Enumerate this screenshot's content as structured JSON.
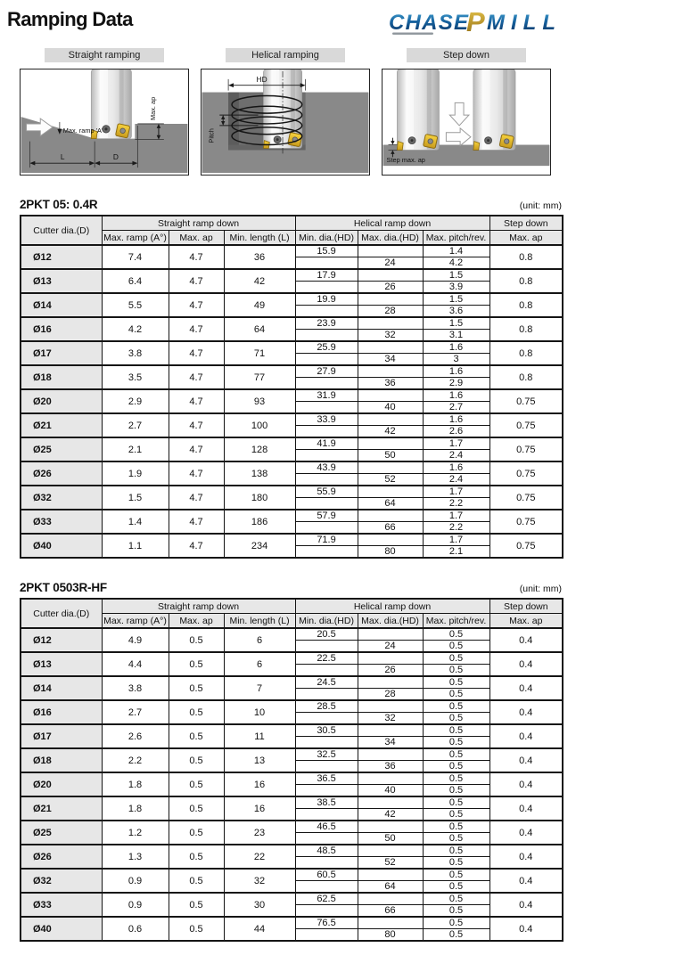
{
  "page": {
    "title": "Ramping Data"
  },
  "logo": {
    "chase": "CHASE",
    "p": "P",
    "mill": "MILL",
    "blue": "#125a9e",
    "gold": "#c79a2e"
  },
  "colors": {
    "header_gray": "#e7e7e7",
    "title_bar_gray": "#d9d9d9",
    "workpiece_gray": "#898989",
    "insert_yellow": "#f2c21d",
    "border_black": "#151515"
  },
  "diagrams": [
    {
      "title": "Straight ramping",
      "labels": {
        "ramp": "Max. ramp 'A'",
        "ap": "Max. ap",
        "l": "L",
        "d": "D"
      }
    },
    {
      "title": "Helical ramping",
      "labels": {
        "hd": "HD",
        "pitch": "Pitch"
      }
    },
    {
      "title": "Step down",
      "labels": {
        "step": "Step max. ap"
      }
    }
  ],
  "tables": [
    {
      "title": "2PKT 05: 0.4R",
      "unit": "(unit: mm)",
      "headers": {
        "cutter_dia": "Cutter dia.(D)",
        "straight": "Straight ramp down",
        "helical": "Helical ramp down",
        "step": "Step down",
        "max_ramp": "Max. ramp (A°)",
        "max_ap": "Max. ap",
        "min_length": "Min. length (L)",
        "min_dia": "Min. dia.(HD)",
        "max_dia": "Max. dia.(HD)",
        "pitch": "Max. pitch/rev.",
        "step_ap": "Max. ap"
      },
      "rows": [
        {
          "dia": "Ø12",
          "max_ramp": "7.4",
          "max_ap": "4.7",
          "min_length": "36",
          "min_dia": "15.9",
          "max_dia": "24",
          "pitch_top": "1.4",
          "pitch_bottom": "4.2",
          "step_ap": "0.8"
        },
        {
          "dia": "Ø13",
          "max_ramp": "6.4",
          "max_ap": "4.7",
          "min_length": "42",
          "min_dia": "17.9",
          "max_dia": "26",
          "pitch_top": "1.5",
          "pitch_bottom": "3.9",
          "step_ap": "0.8"
        },
        {
          "dia": "Ø14",
          "max_ramp": "5.5",
          "max_ap": "4.7",
          "min_length": "49",
          "min_dia": "19.9",
          "max_dia": "28",
          "pitch_top": "1.5",
          "pitch_bottom": "3.6",
          "step_ap": "0.8"
        },
        {
          "dia": "Ø16",
          "max_ramp": "4.2",
          "max_ap": "4.7",
          "min_length": "64",
          "min_dia": "23.9",
          "max_dia": "32",
          "pitch_top": "1.5",
          "pitch_bottom": "3.1",
          "step_ap": "0.8"
        },
        {
          "dia": "Ø17",
          "max_ramp": "3.8",
          "max_ap": "4.7",
          "min_length": "71",
          "min_dia": "25.9",
          "max_dia": "34",
          "pitch_top": "1.6",
          "pitch_bottom": "3",
          "step_ap": "0.8"
        },
        {
          "dia": "Ø18",
          "max_ramp": "3.5",
          "max_ap": "4.7",
          "min_length": "77",
          "min_dia": "27.9",
          "max_dia": "36",
          "pitch_top": "1.6",
          "pitch_bottom": "2.9",
          "step_ap": "0.8"
        },
        {
          "dia": "Ø20",
          "max_ramp": "2.9",
          "max_ap": "4.7",
          "min_length": "93",
          "min_dia": "31.9",
          "max_dia": "40",
          "pitch_top": "1.6",
          "pitch_bottom": "2.7",
          "step_ap": "0.75"
        },
        {
          "dia": "Ø21",
          "max_ramp": "2.7",
          "max_ap": "4.7",
          "min_length": "100",
          "min_dia": "33.9",
          "max_dia": "42",
          "pitch_top": "1.6",
          "pitch_bottom": "2.6",
          "step_ap": "0.75"
        },
        {
          "dia": "Ø25",
          "max_ramp": "2.1",
          "max_ap": "4.7",
          "min_length": "128",
          "min_dia": "41.9",
          "max_dia": "50",
          "pitch_top": "1.7",
          "pitch_bottom": "2.4",
          "step_ap": "0.75"
        },
        {
          "dia": "Ø26",
          "max_ramp": "1.9",
          "max_ap": "4.7",
          "min_length": "138",
          "min_dia": "43.9",
          "max_dia": "52",
          "pitch_top": "1.6",
          "pitch_bottom": "2.4",
          "step_ap": "0.75"
        },
        {
          "dia": "Ø32",
          "max_ramp": "1.5",
          "max_ap": "4.7",
          "min_length": "180",
          "min_dia": "55.9",
          "max_dia": "64",
          "pitch_top": "1.7",
          "pitch_bottom": "2.2",
          "step_ap": "0.75"
        },
        {
          "dia": "Ø33",
          "max_ramp": "1.4",
          "max_ap": "4.7",
          "min_length": "186",
          "min_dia": "57.9",
          "max_dia": "66",
          "pitch_top": "1.7",
          "pitch_bottom": "2.2",
          "step_ap": "0.75"
        },
        {
          "dia": "Ø40",
          "max_ramp": "1.1",
          "max_ap": "4.7",
          "min_length": "234",
          "min_dia": "71.9",
          "max_dia": "80",
          "pitch_top": "1.7",
          "pitch_bottom": "2.1",
          "step_ap": "0.75"
        }
      ]
    },
    {
      "title": "2PKT 0503R-HF",
      "unit": "(unit: mm)",
      "headers": {
        "cutter_dia": "Cutter dia.(D)",
        "straight": "Straight ramp down",
        "helical": "Helical ramp down",
        "step": "Step down",
        "max_ramp": "Max. ramp (A°)",
        "max_ap": "Max. ap",
        "min_length": "Min. length (L)",
        "min_dia": "Min. dia.(HD)",
        "max_dia": "Max. dia.(HD)",
        "pitch": "Max. pitch/rev.",
        "step_ap": "Max. ap"
      },
      "rows": [
        {
          "dia": "Ø12",
          "max_ramp": "4.9",
          "max_ap": "0.5",
          "min_length": "6",
          "min_dia": "20.5",
          "max_dia": "24",
          "pitch_top": "0.5",
          "pitch_bottom": "0.5",
          "step_ap": "0.4"
        },
        {
          "dia": "Ø13",
          "max_ramp": "4.4",
          "max_ap": "0.5",
          "min_length": "6",
          "min_dia": "22.5",
          "max_dia": "26",
          "pitch_top": "0.5",
          "pitch_bottom": "0.5",
          "step_ap": "0.4"
        },
        {
          "dia": "Ø14",
          "max_ramp": "3.8",
          "max_ap": "0.5",
          "min_length": "7",
          "min_dia": "24.5",
          "max_dia": "28",
          "pitch_top": "0.5",
          "pitch_bottom": "0.5",
          "step_ap": "0.4"
        },
        {
          "dia": "Ø16",
          "max_ramp": "2.7",
          "max_ap": "0.5",
          "min_length": "10",
          "min_dia": "28.5",
          "max_dia": "32",
          "pitch_top": "0.5",
          "pitch_bottom": "0.5",
          "step_ap": "0.4"
        },
        {
          "dia": "Ø17",
          "max_ramp": "2.6",
          "max_ap": "0.5",
          "min_length": "11",
          "min_dia": "30.5",
          "max_dia": "34",
          "pitch_top": "0.5",
          "pitch_bottom": "0.5",
          "step_ap": "0.4"
        },
        {
          "dia": "Ø18",
          "max_ramp": "2.2",
          "max_ap": "0.5",
          "min_length": "13",
          "min_dia": "32.5",
          "max_dia": "36",
          "pitch_top": "0.5",
          "pitch_bottom": "0.5",
          "step_ap": "0.4"
        },
        {
          "dia": "Ø20",
          "max_ramp": "1.8",
          "max_ap": "0.5",
          "min_length": "16",
          "min_dia": "36.5",
          "max_dia": "40",
          "pitch_top": "0.5",
          "pitch_bottom": "0.5",
          "step_ap": "0.4"
        },
        {
          "dia": "Ø21",
          "max_ramp": "1.8",
          "max_ap": "0.5",
          "min_length": "16",
          "min_dia": "38.5",
          "max_dia": "42",
          "pitch_top": "0.5",
          "pitch_bottom": "0.5",
          "step_ap": "0.4"
        },
        {
          "dia": "Ø25",
          "max_ramp": "1.2",
          "max_ap": "0.5",
          "min_length": "23",
          "min_dia": "46.5",
          "max_dia": "50",
          "pitch_top": "0.5",
          "pitch_bottom": "0.5",
          "step_ap": "0.4"
        },
        {
          "dia": "Ø26",
          "max_ramp": "1.3",
          "max_ap": "0.5",
          "min_length": "22",
          "min_dia": "48.5",
          "max_dia": "52",
          "pitch_top": "0.5",
          "pitch_bottom": "0.5",
          "step_ap": "0.4"
        },
        {
          "dia": "Ø32",
          "max_ramp": "0.9",
          "max_ap": "0.5",
          "min_length": "32",
          "min_dia": "60.5",
          "max_dia": "64",
          "pitch_top": "0.5",
          "pitch_bottom": "0.5",
          "step_ap": "0.4"
        },
        {
          "dia": "Ø33",
          "max_ramp": "0.9",
          "max_ap": "0.5",
          "min_length": "30",
          "min_dia": "62.5",
          "max_dia": "66",
          "pitch_top": "0.5",
          "pitch_bottom": "0.5",
          "step_ap": "0.4"
        },
        {
          "dia": "Ø40",
          "max_ramp": "0.6",
          "max_ap": "0.5",
          "min_length": "44",
          "min_dia": "76.5",
          "max_dia": "80",
          "pitch_top": "0.5",
          "pitch_bottom": "0.5",
          "step_ap": "0.4"
        }
      ]
    }
  ]
}
